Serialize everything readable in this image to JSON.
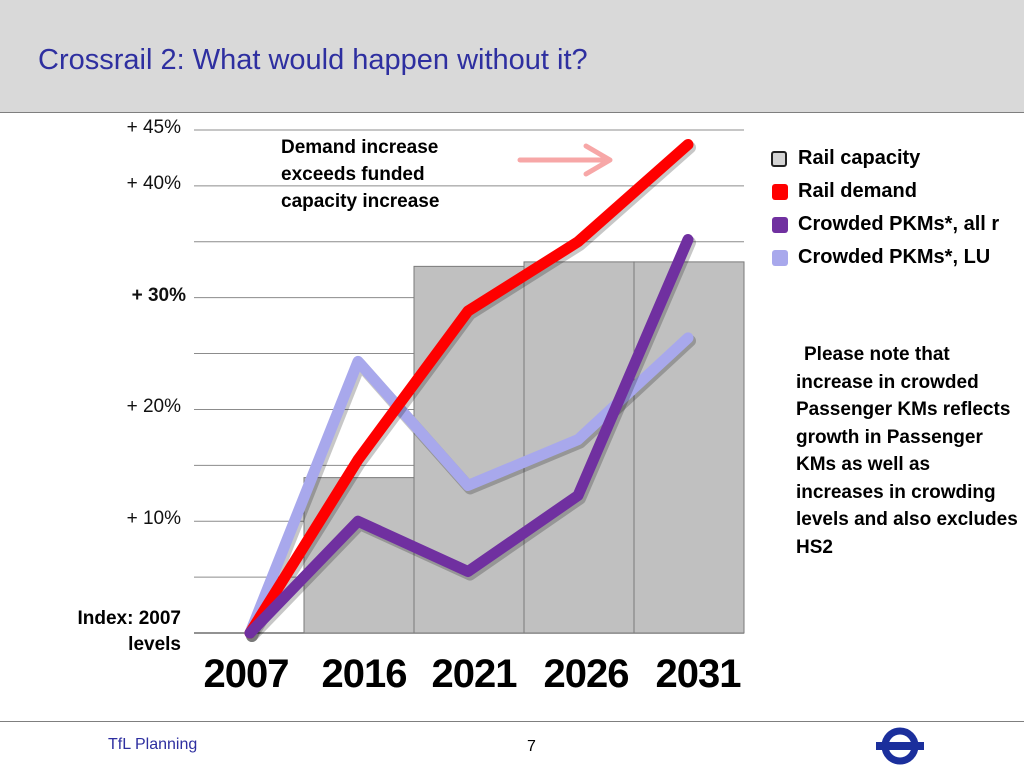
{
  "header": {
    "title": "Crossrail 2: What would happen without it?"
  },
  "chart_data": {
    "type": "bar",
    "categories": [
      "2007",
      "2016",
      "2021",
      "2026",
      "2031"
    ],
    "ylim": [
      0,
      45
    ],
    "y_ticks": [
      {
        "value": 45,
        "label": "+ 45%",
        "bold": false
      },
      {
        "value": 40,
        "label": "+ 40%",
        "bold": false
      },
      {
        "value": 30,
        "label": "+ 30%",
        "bold": true
      },
      {
        "value": 20,
        "label": "+ 20%",
        "bold": false
      },
      {
        "value": 10,
        "label": "+ 10%",
        "bold": false
      }
    ],
    "gridlines": [
      45,
      40,
      35,
      30,
      25,
      20,
      15,
      10,
      5
    ],
    "index_label": "Index: 2007 levels",
    "grid": true,
    "legend_position": "right",
    "series": [
      {
        "name": "Rail capacity",
        "kind": "bar",
        "color": "#c0c0c0",
        "values": [
          0,
          13.9,
          32.8,
          33.2,
          33.2
        ]
      },
      {
        "name": "Rail demand",
        "kind": "line",
        "color": "#ff0000",
        "values": [
          0,
          15.5,
          28.8,
          35,
          43.7
        ]
      },
      {
        "name": "Crowded PKMs*, all r",
        "kind": "line",
        "color": "#7030a0",
        "values": [
          0,
          10,
          5.5,
          12.3,
          35.2
        ]
      },
      {
        "name": "Crowded PKMs*, LU",
        "kind": "line",
        "color": "#a8a8ec",
        "values": [
          0,
          24.3,
          13.2,
          17.3,
          26.4
        ]
      }
    ],
    "annotation": "Demand increase exceeds funded capacity increase",
    "arrow_color": "#f7a7a7"
  },
  "note": "Please note that increase in crowded Passenger KMs reflects growth in Passenger KMs as well as increases in crowding levels and also excludes HS2",
  "footer": {
    "left": "TfL Planning",
    "page": "7"
  },
  "colors": {
    "title": "#2e2fa0",
    "header_bg": "#d9d9d9",
    "roundel": "#1b2f9c"
  }
}
